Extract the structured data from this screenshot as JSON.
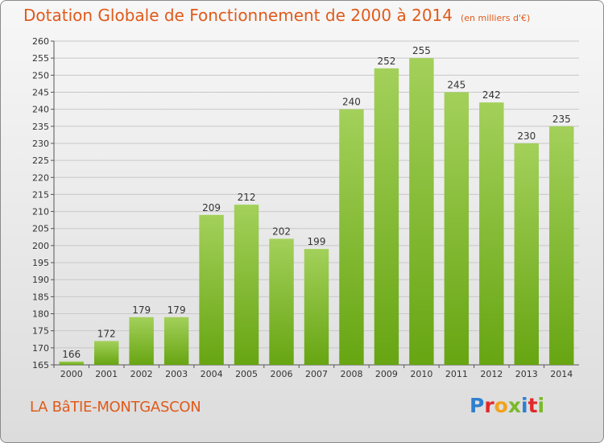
{
  "header": {
    "title": "Dotation Globale de Fonctionnement de 2000 à 2014",
    "unit": "(en milliers d'€)"
  },
  "footer": {
    "place": "LA BâTIE-MONTGASCON",
    "logo_letters": [
      "P",
      "r",
      "o",
      "x",
      "i",
      "t",
      "i"
    ],
    "logo_colors": [
      "#2e7fd0",
      "#e2282b",
      "#f3a21b",
      "#7ab929",
      "#2e7fd0",
      "#e2282b",
      "#7ab929"
    ]
  },
  "colors": {
    "title": "#e05a1a",
    "bar_top": "#a3d05a",
    "bar_bottom": "#67a512",
    "grid": "#c8c8c8"
  },
  "chart_data": {
    "type": "bar",
    "categories": [
      "2000",
      "2001",
      "2002",
      "2003",
      "2004",
      "2005",
      "2006",
      "2007",
      "2008",
      "2009",
      "2010",
      "2011",
      "2012",
      "2013",
      "2014"
    ],
    "values": [
      166,
      172,
      179,
      179,
      209,
      212,
      202,
      199,
      240,
      252,
      255,
      245,
      242,
      230,
      235
    ],
    "ylim": [
      165,
      260
    ],
    "yticks": [
      165,
      170,
      175,
      180,
      185,
      190,
      195,
      200,
      205,
      210,
      215,
      220,
      225,
      230,
      235,
      240,
      245,
      250,
      255,
      260
    ],
    "grid": true,
    "legend": "none"
  }
}
